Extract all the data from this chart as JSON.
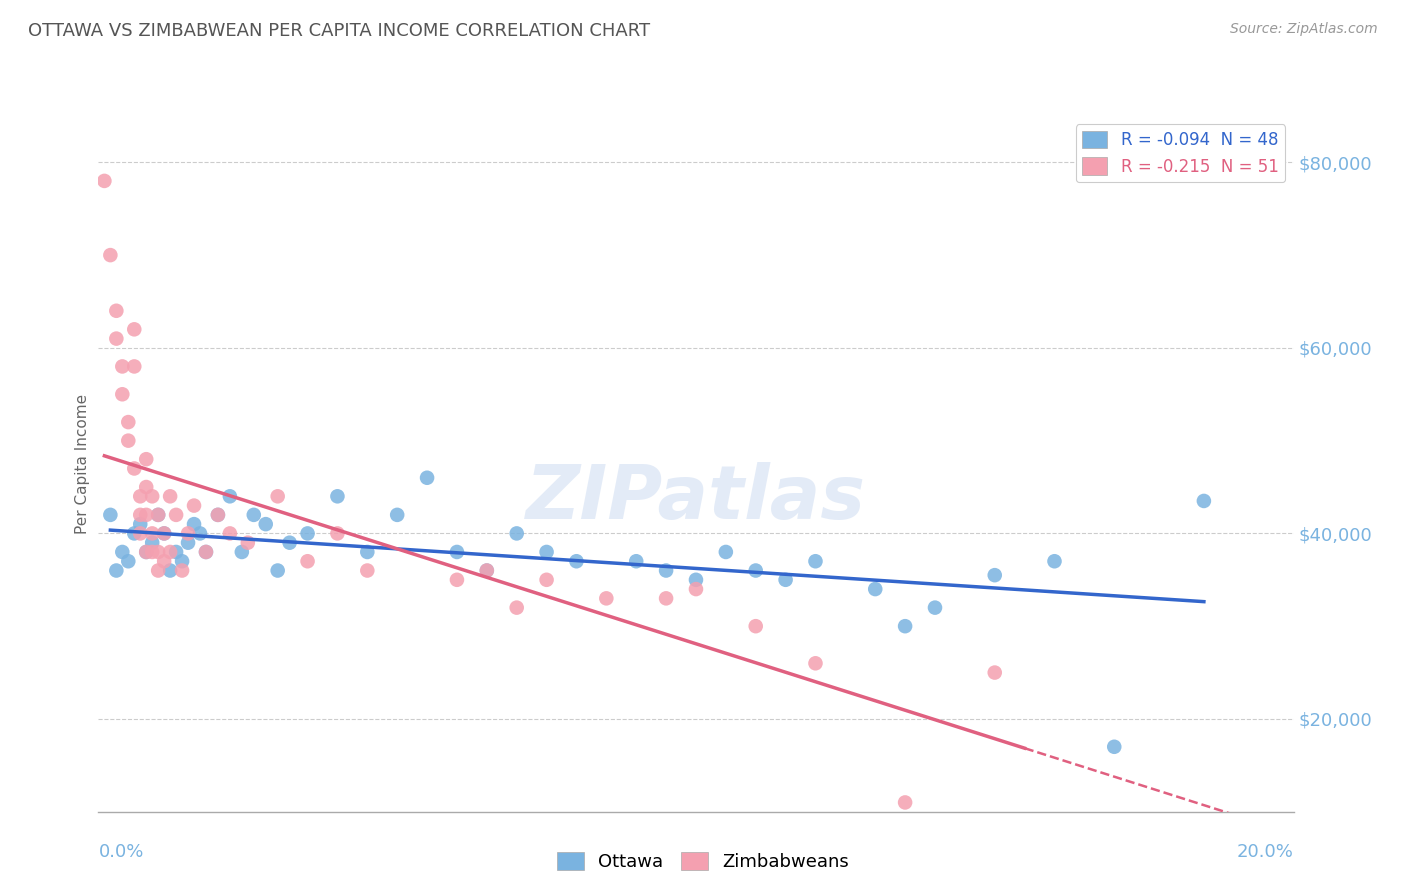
{
  "title": "OTTAWA VS ZIMBABWEAN PER CAPITA INCOME CORRELATION CHART",
  "source": "Source: ZipAtlas.com",
  "ylabel": "Per Capita Income",
  "yticks": [
    20000,
    40000,
    60000,
    80000
  ],
  "ytick_labels": [
    "$20,000",
    "$40,000",
    "$60,000",
    "$80,000"
  ],
  "xlim": [
    0.0,
    0.2
  ],
  "ylim": [
    10000,
    85000
  ],
  "legend_r_labels": [
    "R = -0.094  N = 48",
    "R = -0.215  N = 51"
  ],
  "ottawa_color": "#7ab3e0",
  "zimbabwean_color": "#f4a0b0",
  "ottawa_line_color": "#3366cc",
  "zimbabwean_line_color": "#e06080",
  "watermark": "ZIPatlas",
  "background_color": "#ffffff",
  "grid_color": "#cccccc",
  "title_color": "#555555",
  "axis_color": "#7ab3e0",
  "ottawa_points": [
    [
      0.002,
      42000
    ],
    [
      0.003,
      36000
    ],
    [
      0.004,
      38000
    ],
    [
      0.005,
      37000
    ],
    [
      0.006,
      40000
    ],
    [
      0.007,
      41000
    ],
    [
      0.008,
      38000
    ],
    [
      0.009,
      39000
    ],
    [
      0.01,
      42000
    ],
    [
      0.011,
      40000
    ],
    [
      0.012,
      36000
    ],
    [
      0.013,
      38000
    ],
    [
      0.014,
      37000
    ],
    [
      0.015,
      39000
    ],
    [
      0.016,
      41000
    ],
    [
      0.017,
      40000
    ],
    [
      0.018,
      38000
    ],
    [
      0.02,
      42000
    ],
    [
      0.022,
      44000
    ],
    [
      0.024,
      38000
    ],
    [
      0.026,
      42000
    ],
    [
      0.028,
      41000
    ],
    [
      0.03,
      36000
    ],
    [
      0.032,
      39000
    ],
    [
      0.035,
      40000
    ],
    [
      0.04,
      44000
    ],
    [
      0.045,
      38000
    ],
    [
      0.05,
      42000
    ],
    [
      0.055,
      46000
    ],
    [
      0.06,
      38000
    ],
    [
      0.065,
      36000
    ],
    [
      0.07,
      40000
    ],
    [
      0.075,
      38000
    ],
    [
      0.08,
      37000
    ],
    [
      0.09,
      37000
    ],
    [
      0.095,
      36000
    ],
    [
      0.1,
      35000
    ],
    [
      0.105,
      38000
    ],
    [
      0.11,
      36000
    ],
    [
      0.115,
      35000
    ],
    [
      0.12,
      37000
    ],
    [
      0.13,
      34000
    ],
    [
      0.135,
      30000
    ],
    [
      0.14,
      32000
    ],
    [
      0.15,
      35500
    ],
    [
      0.16,
      37000
    ],
    [
      0.17,
      17000
    ],
    [
      0.185,
      43500
    ]
  ],
  "zimbabwean_points": [
    [
      0.001,
      78000
    ],
    [
      0.002,
      70000
    ],
    [
      0.003,
      64000
    ],
    [
      0.003,
      61000
    ],
    [
      0.004,
      58000
    ],
    [
      0.004,
      55000
    ],
    [
      0.005,
      52000
    ],
    [
      0.005,
      50000
    ],
    [
      0.006,
      62000
    ],
    [
      0.006,
      58000
    ],
    [
      0.006,
      47000
    ],
    [
      0.007,
      44000
    ],
    [
      0.007,
      42000
    ],
    [
      0.007,
      40000
    ],
    [
      0.008,
      48000
    ],
    [
      0.008,
      45000
    ],
    [
      0.008,
      42000
    ],
    [
      0.008,
      38000
    ],
    [
      0.009,
      44000
    ],
    [
      0.009,
      40000
    ],
    [
      0.009,
      38000
    ],
    [
      0.01,
      36000
    ],
    [
      0.01,
      42000
    ],
    [
      0.01,
      38000
    ],
    [
      0.011,
      37000
    ],
    [
      0.011,
      40000
    ],
    [
      0.012,
      44000
    ],
    [
      0.012,
      38000
    ],
    [
      0.013,
      42000
    ],
    [
      0.014,
      36000
    ],
    [
      0.015,
      40000
    ],
    [
      0.016,
      43000
    ],
    [
      0.018,
      38000
    ],
    [
      0.02,
      42000
    ],
    [
      0.022,
      40000
    ],
    [
      0.025,
      39000
    ],
    [
      0.03,
      44000
    ],
    [
      0.035,
      37000
    ],
    [
      0.04,
      40000
    ],
    [
      0.045,
      36000
    ],
    [
      0.06,
      35000
    ],
    [
      0.065,
      36000
    ],
    [
      0.07,
      32000
    ],
    [
      0.075,
      35000
    ],
    [
      0.085,
      33000
    ],
    [
      0.095,
      33000
    ],
    [
      0.1,
      34000
    ],
    [
      0.11,
      30000
    ],
    [
      0.12,
      26000
    ],
    [
      0.135,
      11000
    ],
    [
      0.15,
      25000
    ]
  ]
}
